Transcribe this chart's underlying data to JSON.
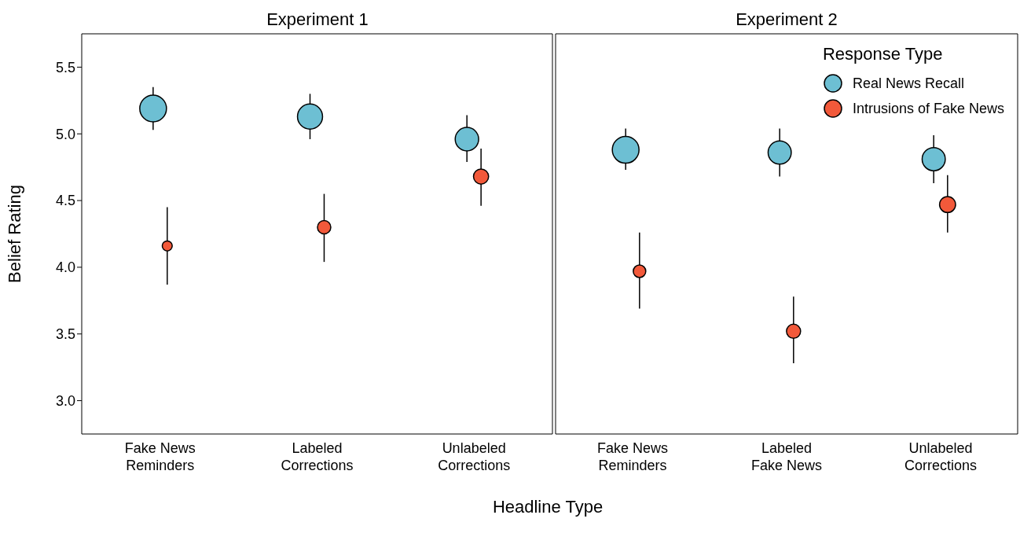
{
  "chart_data": [
    {
      "type": "bubble",
      "title": "Experiment 1",
      "xlabel": "Headline Type",
      "ylabel": "Belief Rating",
      "categories": [
        "Fake News Reminders",
        "Labeled Corrections",
        "Unlabeled Corrections"
      ],
      "ylim": [
        2.75,
        5.75
      ],
      "yticks": [
        {
          "value": 3,
          "label": "3.0"
        },
        {
          "value": 3.5,
          "label": "3.5"
        },
        {
          "value": 4,
          "label": "4.0"
        },
        {
          "value": 4.5,
          "label": "4.5"
        },
        {
          "value": 5,
          "label": "5.0"
        },
        {
          "value": 5.5,
          "label": "5.5"
        }
      ],
      "marker": "circle",
      "series": [
        {
          "color": "#6dbfd3",
          "values": [
            5.19,
            5.13,
            4.96
          ],
          "errors": [
            [
              5.03,
              5.35
            ],
            [
              4.96,
              5.3
            ],
            [
              4.79,
              5.14
            ]
          ],
          "sizes": [
            1,
            0.88,
            0.77
          ]
        },
        {
          "color": "#f2593a",
          "values": [
            4.16,
            4.3,
            4.68
          ],
          "errors": [
            [
              3.87,
              4.45
            ],
            [
              4.04,
              4.55
            ],
            [
              4.46,
              4.89
            ]
          ],
          "sizes": [
            0.14,
            0.25,
            0.32
          ]
        }
      ]
    },
    {
      "type": "bubble",
      "title": "Experiment 2",
      "legend_title": "Response Type",
      "categories": [
        "Fake News Reminders",
        "Labeled Fake News",
        "Unlabeled Corrections"
      ],
      "ylim": [
        2.75,
        5.75
      ],
      "tick_labels": "x",
      "legend": "top right",
      "marker": "circle",
      "series": [
        {
          "name": "Real News Recall",
          "color": "#6dbfd3",
          "values": [
            4.88,
            4.86,
            4.81
          ],
          "errors": [
            [
              4.73,
              5.04
            ],
            [
              4.68,
              5.04
            ],
            [
              4.63,
              4.99
            ]
          ],
          "sizes": [
            1,
            0.75,
            0.75
          ]
        },
        {
          "name": "Intrusions of Fake News",
          "color": "#f2593a",
          "values": [
            3.97,
            3.52,
            4.47
          ],
          "errors": [
            [
              3.69,
              4.26
            ],
            [
              3.28,
              3.78
            ],
            [
              4.26,
              4.69
            ]
          ],
          "sizes": [
            0.22,
            0.28,
            0.36
          ]
        }
      ]
    }
  ]
}
